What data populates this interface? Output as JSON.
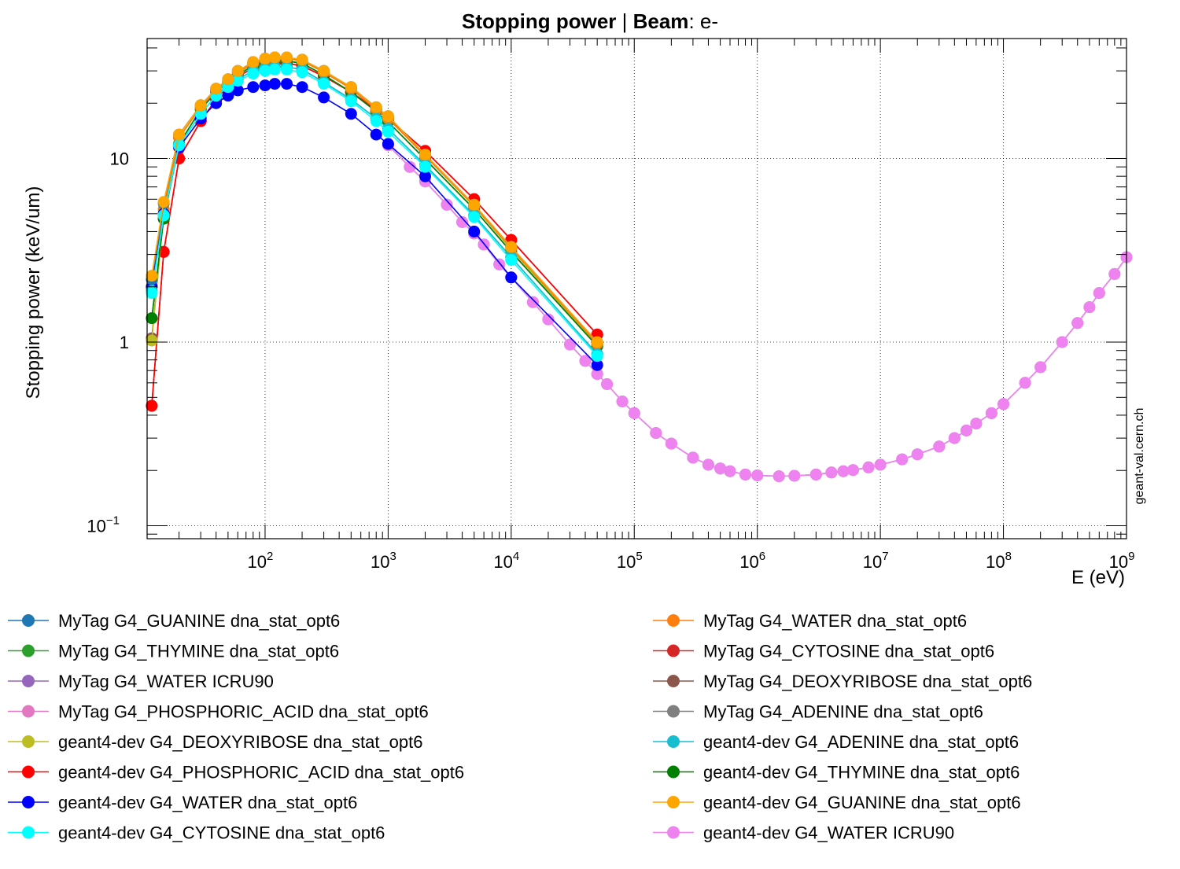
{
  "chart_data": {
    "type": "line",
    "title_bold": "Stopping power",
    "title_sep": " | ",
    "title_beam_label": "Beam",
    "title_beam_value": ": e-",
    "xlabel": "E (eV)",
    "ylabel": "Stopping power (keV/um)",
    "x_scale": "log",
    "y_scale": "log",
    "xlim": [
      11,
      1000000000
    ],
    "ylim": [
      0.085,
      45
    ],
    "grid": true,
    "legend_position": "bottom",
    "watermark": "geant-val.cern.ch",
    "x_ticks": [
      {
        "value": 100,
        "base": "10",
        "exp": "2"
      },
      {
        "value": 1000,
        "base": "10",
        "exp": "3"
      },
      {
        "value": 10000,
        "base": "10",
        "exp": "4"
      },
      {
        "value": 100000,
        "base": "10",
        "exp": "5"
      },
      {
        "value": 1000000,
        "base": "10",
        "exp": "6"
      },
      {
        "value": 10000000,
        "base": "10",
        "exp": "7"
      },
      {
        "value": 100000000,
        "base": "10",
        "exp": "8"
      },
      {
        "value": 1000000000,
        "base": "10",
        "exp": "9"
      }
    ],
    "y_ticks": [
      {
        "value": 0.1,
        "base": "10",
        "exp": "−1"
      },
      {
        "value": 1,
        "base": "1",
        "exp": ""
      },
      {
        "value": 10,
        "base": "10",
        "exp": ""
      }
    ],
    "series": [
      {
        "name": "MyTag G4_GUANINE dna_stat_opt6",
        "color": "#1f77b4",
        "x": [
          12,
          15,
          20,
          30,
          40,
          50,
          60,
          80,
          100,
          120,
          150,
          200,
          300,
          500,
          800,
          1000,
          2000,
          5000,
          10000,
          50000
        ],
        "y": [
          2.2,
          5.7,
          13.5,
          19.5,
          24,
          27,
          30,
          33.5,
          35,
          35.5,
          35.5,
          34.5,
          30,
          24.5,
          19,
          17,
          10.5,
          5.6,
          3.3,
          1.0
        ]
      },
      {
        "name": "MyTag G4_WATER dna_stat_opt6",
        "color": "#ff7f0e",
        "x": [
          12,
          15,
          20,
          30,
          40,
          50,
          60,
          80,
          100,
          120,
          150,
          200,
          300,
          500,
          800,
          1000,
          2000,
          5000,
          10000,
          50000
        ],
        "y": [
          2.0,
          5.3,
          13,
          19,
          23.5,
          26.5,
          29.5,
          33,
          34.5,
          35,
          35,
          34,
          29.5,
          24,
          18.5,
          16.5,
          10.3,
          5.5,
          3.25,
          0.98
        ]
      },
      {
        "name": "MyTag G4_THYMINE dna_stat_opt6",
        "color": "#2ca02c",
        "x": [
          12,
          15,
          20,
          30,
          40,
          50,
          60,
          80,
          100,
          120,
          150,
          200,
          300,
          500,
          800,
          1000,
          2000,
          5000,
          10000,
          50000
        ],
        "y": [
          1.35,
          4.7,
          12,
          18.5,
          23,
          26,
          28.5,
          32,
          33.5,
          34,
          34,
          33,
          28.5,
          23,
          18,
          15.8,
          9.9,
          5.3,
          3.1,
          0.95
        ]
      },
      {
        "name": "MyTag G4_CYTOSINE dna_stat_opt6",
        "color": "#d62728",
        "x": [
          12,
          15,
          20,
          30,
          40,
          50,
          60,
          80,
          100,
          120,
          150,
          200,
          300,
          500,
          800,
          1000,
          2000,
          5000,
          10000,
          50000
        ],
        "y": [
          0.45,
          3.1,
          10,
          16,
          21,
          25,
          28,
          31,
          32.5,
          33,
          33,
          32,
          28,
          23,
          18.5,
          16.5,
          11,
          6,
          3.6,
          1.1
        ]
      },
      {
        "name": "MyTag G4_WATER ICRU90",
        "color": "#9467bd",
        "x": [
          1000,
          1500,
          2000,
          3000,
          4000,
          5000,
          6000,
          8000,
          10000,
          15000,
          20000,
          30000,
          40000,
          50000,
          60000,
          80000,
          100000,
          150000,
          200000,
          300000,
          400000,
          500000,
          600000,
          800000,
          1000000,
          1500000,
          2000000,
          3000000,
          4000000,
          5000000,
          6000000,
          8000000,
          10000000,
          15000000,
          20000000,
          30000000,
          40000000,
          50000000,
          60000000,
          80000000,
          100000000,
          150000000,
          200000000,
          300000000,
          400000000,
          500000000,
          600000000,
          800000000,
          1000000000
        ],
        "y": [
          11.8,
          9.0,
          7.5,
          5.6,
          4.5,
          3.9,
          3.4,
          2.65,
          2.25,
          1.65,
          1.33,
          0.97,
          0.79,
          0.67,
          0.59,
          0.475,
          0.41,
          0.32,
          0.28,
          0.235,
          0.215,
          0.205,
          0.198,
          0.19,
          0.188,
          0.186,
          0.187,
          0.19,
          0.195,
          0.198,
          0.201,
          0.208,
          0.215,
          0.23,
          0.245,
          0.27,
          0.3,
          0.33,
          0.36,
          0.41,
          0.46,
          0.6,
          0.73,
          1.0,
          1.27,
          1.55,
          1.85,
          2.35,
          2.9
        ]
      },
      {
        "name": "MyTag G4_DEOXYRIBOSE dna_stat_opt6",
        "color": "#8c564b",
        "x": [
          12,
          15,
          20,
          30,
          40,
          50,
          60,
          80,
          100,
          120,
          150,
          200,
          300,
          500,
          800,
          1000,
          2000,
          5000,
          10000,
          50000
        ],
        "y": [
          1.05,
          5.0,
          13,
          19,
          23.5,
          26.5,
          29,
          33,
          34.5,
          35,
          35,
          34,
          29.5,
          24,
          18.5,
          16.5,
          10.3,
          5.5,
          3.2,
          0.97
        ]
      },
      {
        "name": "MyTag G4_PHOSPHORIC_ACID dna_stat_opt6",
        "color": "#e377c2",
        "x": [
          12,
          15,
          20,
          30,
          40,
          50,
          60,
          80,
          100,
          120,
          150,
          200,
          300,
          500,
          800,
          1000,
          2000,
          5000,
          10000,
          50000
        ],
        "y": [
          0.45,
          3.1,
          10,
          16,
          21,
          25,
          28,
          31,
          32.5,
          33,
          33,
          32,
          28,
          23,
          18.5,
          16.5,
          11,
          6,
          3.6,
          1.1
        ]
      },
      {
        "name": "MyTag G4_ADENINE dna_stat_opt6",
        "color": "#7f7f7f",
        "x": [
          12,
          15,
          20,
          30,
          40,
          50,
          60,
          80,
          100,
          120,
          150,
          200,
          300,
          500,
          800,
          1000,
          2000,
          5000,
          10000,
          50000
        ],
        "y": [
          1.9,
          4.9,
          11.8,
          17.5,
          22,
          25,
          27,
          30,
          31,
          31.5,
          31.5,
          30.5,
          26,
          21,
          16.5,
          14.5,
          9.2,
          4.9,
          2.9,
          0.86
        ]
      },
      {
        "name": "geant4-dev G4_DEOXYRIBOSE dna_stat_opt6",
        "color": "#bcbd22",
        "x": [
          12,
          15,
          20,
          30,
          40,
          50,
          60,
          80,
          100,
          120,
          150,
          200,
          300,
          500,
          800,
          1000,
          2000,
          5000,
          10000,
          50000
        ],
        "y": [
          1.02,
          5.0,
          13,
          19,
          23.5,
          26.5,
          29,
          33,
          34.5,
          35,
          35,
          34,
          29.5,
          24,
          18.5,
          16.5,
          10.3,
          5.5,
          3.2,
          0.97
        ]
      },
      {
        "name": "geant4-dev G4_ADENINE dna_stat_opt6",
        "color": "#17becf",
        "x": [
          12,
          15,
          20,
          30,
          40,
          50,
          60,
          80,
          100,
          120,
          150,
          200,
          300,
          500,
          800,
          1000,
          2000,
          5000,
          10000,
          50000
        ],
        "y": [
          1.9,
          4.9,
          11.8,
          17.5,
          22,
          25,
          27,
          30,
          31,
          31.5,
          31.5,
          30.5,
          26,
          21,
          16.5,
          14.5,
          9.2,
          4.9,
          2.9,
          0.86
        ]
      },
      {
        "name": "geant4-dev G4_PHOSPHORIC_ACID dna_stat_opt6",
        "color": "#ff0000",
        "x": [
          12,
          15,
          20,
          30,
          40,
          50,
          60,
          80,
          100,
          120,
          150,
          200,
          300,
          500,
          800,
          1000,
          2000,
          5000,
          10000,
          50000
        ],
        "y": [
          0.45,
          3.1,
          10,
          16,
          21,
          25,
          28,
          31,
          32.5,
          33,
          33,
          32,
          28,
          23,
          18.5,
          16.5,
          11,
          6,
          3.6,
          1.1
        ]
      },
      {
        "name": "geant4-dev G4_THYMINE dna_stat_opt6",
        "color": "#008000",
        "x": [
          12,
          15,
          20,
          30,
          40,
          50,
          60,
          80,
          100,
          120,
          150,
          200,
          300,
          500,
          800,
          1000,
          2000,
          5000,
          10000,
          50000
        ],
        "y": [
          1.35,
          4.7,
          12,
          18.5,
          23,
          26,
          28.5,
          32,
          33.5,
          34,
          34,
          33,
          28.5,
          23,
          18,
          15.8,
          9.9,
          5.3,
          3.1,
          0.95
        ]
      },
      {
        "name": "geant4-dev G4_WATER dna_stat_opt6",
        "color": "#0000ff",
        "x": [
          12,
          15,
          20,
          30,
          40,
          50,
          60,
          80,
          100,
          120,
          150,
          200,
          300,
          500,
          800,
          1000,
          2000,
          5000,
          10000,
          50000
        ],
        "y": [
          2.0,
          5.0,
          11.5,
          16.5,
          20,
          22,
          23.5,
          24.5,
          25,
          25.5,
          25.5,
          24.5,
          21.5,
          17.5,
          13.5,
          12,
          8.0,
          4.0,
          2.25,
          0.75
        ]
      },
      {
        "name": "geant4-dev G4_GUANINE dna_stat_opt6",
        "color": "#ffa500",
        "x": [
          12,
          15,
          20,
          30,
          40,
          50,
          60,
          80,
          100,
          120,
          150,
          200,
          300,
          500,
          800,
          1000,
          2000,
          5000,
          10000,
          50000
        ],
        "y": [
          2.3,
          5.8,
          13.5,
          19.5,
          24,
          27,
          30,
          33.5,
          35,
          35.5,
          35.5,
          34.5,
          30,
          24.5,
          19,
          17,
          10.5,
          5.6,
          3.3,
          1.0
        ]
      },
      {
        "name": "geant4-dev G4_CYTOSINE dna_stat_opt6",
        "color": "#00ffff",
        "x": [
          12,
          15,
          20,
          30,
          40,
          50,
          60,
          80,
          100,
          120,
          150,
          200,
          300,
          500,
          800,
          1000,
          2000,
          5000,
          10000,
          50000
        ],
        "y": [
          1.85,
          4.9,
          11.8,
          17.5,
          22,
          24.5,
          26.5,
          29,
          30,
          30.5,
          30.5,
          29.5,
          25.5,
          20.5,
          16,
          14,
          9.0,
          4.8,
          2.8,
          0.84
        ]
      },
      {
        "name": "geant4-dev G4_WATER ICRU90",
        "color": "#ee82ee",
        "x": [
          1000,
          1500,
          2000,
          3000,
          4000,
          5000,
          6000,
          8000,
          10000,
          15000,
          20000,
          30000,
          40000,
          50000,
          60000,
          80000,
          100000,
          150000,
          200000,
          300000,
          400000,
          500000,
          600000,
          800000,
          1000000,
          1500000,
          2000000,
          3000000,
          4000000,
          5000000,
          6000000,
          8000000,
          10000000,
          15000000,
          20000000,
          30000000,
          40000000,
          50000000,
          60000000,
          80000000,
          100000000,
          150000000,
          200000000,
          300000000,
          400000000,
          500000000,
          600000000,
          800000000,
          1000000000
        ],
        "y": [
          11.8,
          9.0,
          7.5,
          5.6,
          4.5,
          3.9,
          3.4,
          2.65,
          2.25,
          1.65,
          1.33,
          0.97,
          0.79,
          0.67,
          0.59,
          0.475,
          0.41,
          0.32,
          0.28,
          0.235,
          0.215,
          0.205,
          0.198,
          0.19,
          0.188,
          0.186,
          0.187,
          0.19,
          0.195,
          0.198,
          0.201,
          0.208,
          0.215,
          0.23,
          0.245,
          0.27,
          0.3,
          0.33,
          0.36,
          0.41,
          0.46,
          0.6,
          0.73,
          1.0,
          1.27,
          1.55,
          1.85,
          2.35,
          2.9
        ]
      }
    ],
    "legend_left": [
      "MyTag G4_GUANINE dna_stat_opt6",
      "MyTag G4_THYMINE dna_stat_opt6",
      "MyTag G4_WATER ICRU90",
      "MyTag G4_PHOSPHORIC_ACID dna_stat_opt6",
      "geant4-dev G4_DEOXYRIBOSE dna_stat_opt6",
      "geant4-dev G4_PHOSPHORIC_ACID dna_stat_opt6",
      "geant4-dev G4_WATER dna_stat_opt6",
      "geant4-dev G4_CYTOSINE dna_stat_opt6"
    ],
    "legend_right": [
      "MyTag G4_WATER dna_stat_opt6",
      "MyTag G4_CYTOSINE dna_stat_opt6",
      "MyTag G4_DEOXYRIBOSE dna_stat_opt6",
      "MyTag G4_ADENINE dna_stat_opt6",
      "geant4-dev G4_ADENINE dna_stat_opt6",
      "geant4-dev G4_THYMINE dna_stat_opt6",
      "geant4-dev G4_GUANINE dna_stat_opt6",
      "geant4-dev G4_WATER ICRU90"
    ],
    "draw_order": [
      "MyTag G4_PHOSPHORIC_ACID dna_stat_opt6",
      "MyTag G4_WATER ICRU90",
      "geant4-dev G4_WATER ICRU90",
      "MyTag G4_CYTOSINE dna_stat_opt6",
      "geant4-dev G4_PHOSPHORIC_ACID dna_stat_opt6",
      "MyTag G4_DEOXYRIBOSE dna_stat_opt6",
      "geant4-dev G4_DEOXYRIBOSE dna_stat_opt6",
      "MyTag G4_THYMINE dna_stat_opt6",
      "geant4-dev G4_THYMINE dna_stat_opt6",
      "MyTag G4_WATER dna_stat_opt6",
      "geant4-dev G4_WATER dna_stat_opt6",
      "MyTag G4_ADENINE dna_stat_opt6",
      "geant4-dev G4_ADENINE dna_stat_opt6",
      "geant4-dev G4_CYTOSINE dna_stat_opt6",
      "MyTag G4_GUANINE dna_stat_opt6",
      "geant4-dev G4_GUANINE dna_stat_opt6"
    ]
  }
}
